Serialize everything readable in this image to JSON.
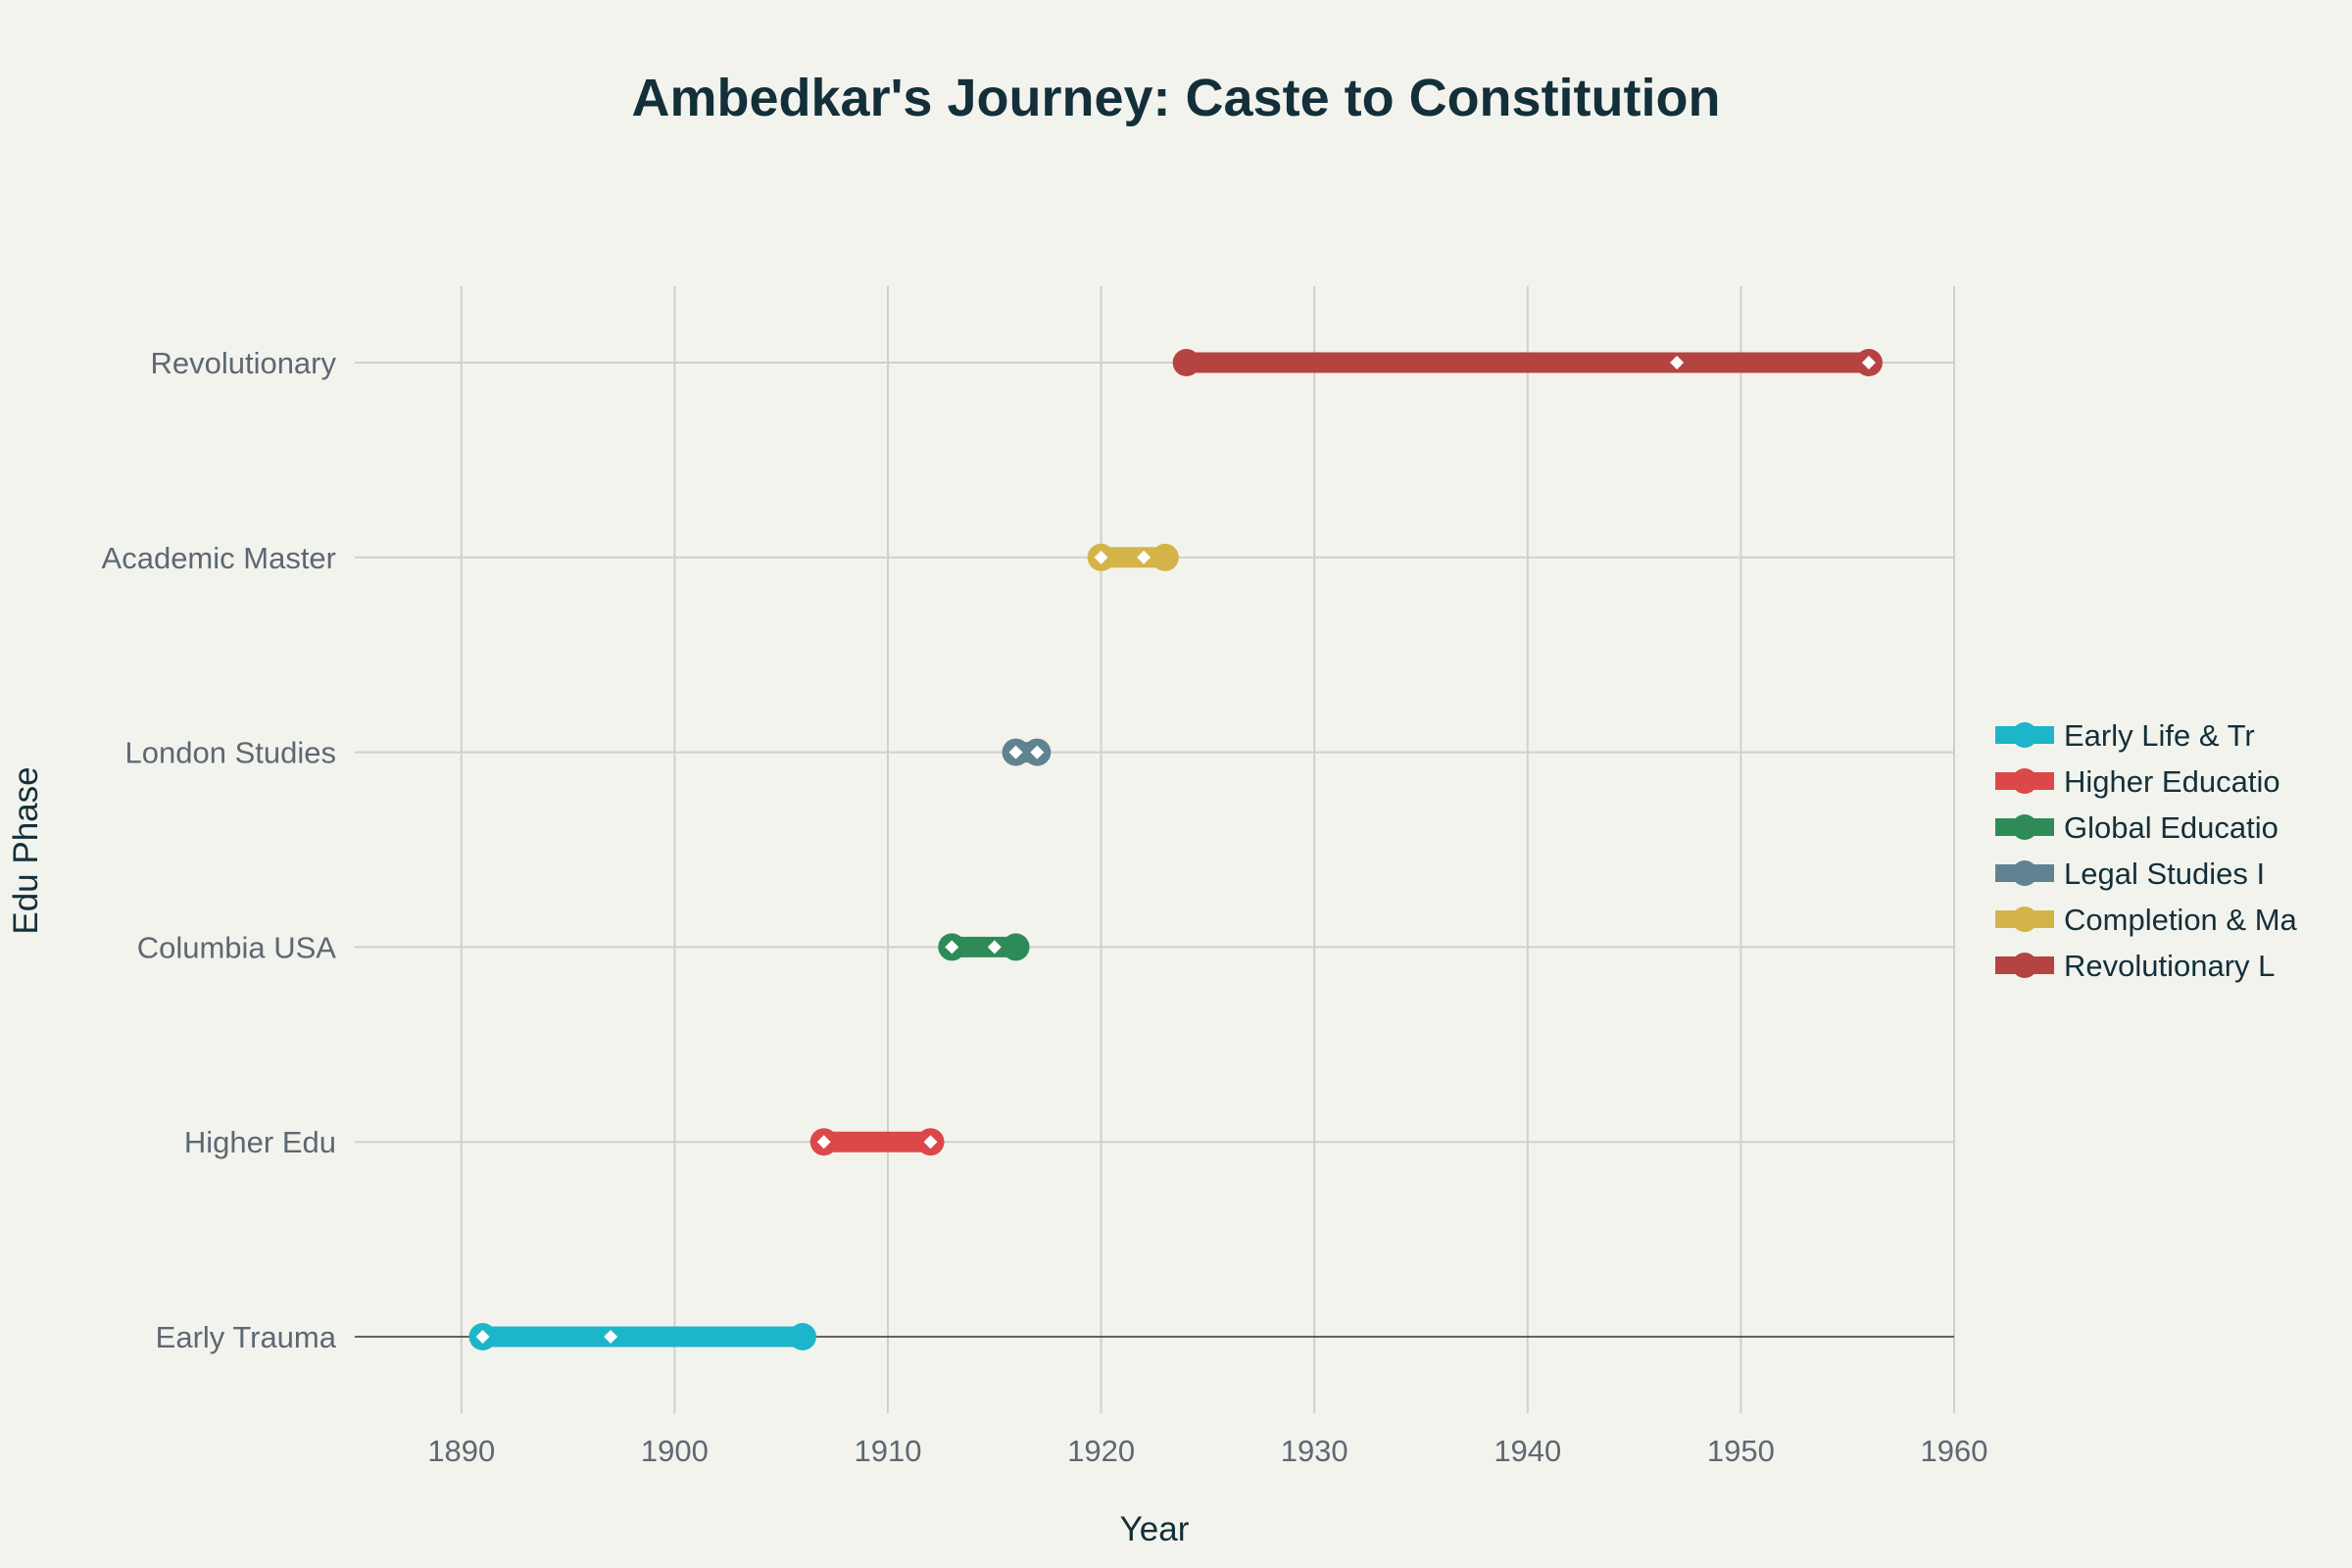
{
  "chart_data": {
    "type": "line",
    "title": "Ambedkar's Journey: Caste to Constitution",
    "xlabel": "Year",
    "ylabel": "Edu Phase",
    "xlim": [
      1885,
      1960
    ],
    "xticks": [
      1890,
      1900,
      1910,
      1920,
      1930,
      1940,
      1950,
      1960
    ],
    "categories": [
      "Early Trauma",
      "Higher Edu",
      "Columbia USA",
      "London Studies",
      "Academic Master",
      "Revolutionary"
    ],
    "grid": true,
    "legend_position": "right",
    "series": [
      {
        "name": "Early Life & Tr",
        "category": "Early Trauma",
        "color": "#1db5c9",
        "points": [
          {
            "x": 1891,
            "marker": "circle-open"
          },
          {
            "x": 1897,
            "marker": "diamond"
          },
          {
            "x": 1906,
            "marker": "circle"
          }
        ]
      },
      {
        "name": "Higher Educatio",
        "category": "Higher Edu",
        "color": "#dc4748",
        "points": [
          {
            "x": 1907,
            "marker": "circle-open"
          },
          {
            "x": 1912,
            "marker": "circle-open"
          }
        ]
      },
      {
        "name": "Global Educatio",
        "category": "Columbia USA",
        "color": "#2e8b57",
        "points": [
          {
            "x": 1913,
            "marker": "circle-open"
          },
          {
            "x": 1915,
            "marker": "diamond"
          },
          {
            "x": 1916,
            "marker": "circle"
          }
        ]
      },
      {
        "name": "Legal Studies I",
        "category": "London Studies",
        "color": "#5f8390",
        "points": [
          {
            "x": 1916,
            "marker": "circle-open"
          },
          {
            "x": 1917,
            "marker": "circle-open"
          }
        ]
      },
      {
        "name": "Completion & Ma",
        "category": "Academic Master",
        "color": "#d4b449",
        "points": [
          {
            "x": 1920,
            "marker": "circle-open"
          },
          {
            "x": 1922,
            "marker": "diamond"
          },
          {
            "x": 1923,
            "marker": "circle"
          }
        ]
      },
      {
        "name": "Revolutionary L",
        "category": "Revolutionary",
        "color": "#b54341",
        "points": [
          {
            "x": 1924,
            "marker": "circle"
          },
          {
            "x": 1947,
            "marker": "diamond"
          },
          {
            "x": 1956,
            "marker": "circle-open"
          }
        ]
      }
    ]
  }
}
